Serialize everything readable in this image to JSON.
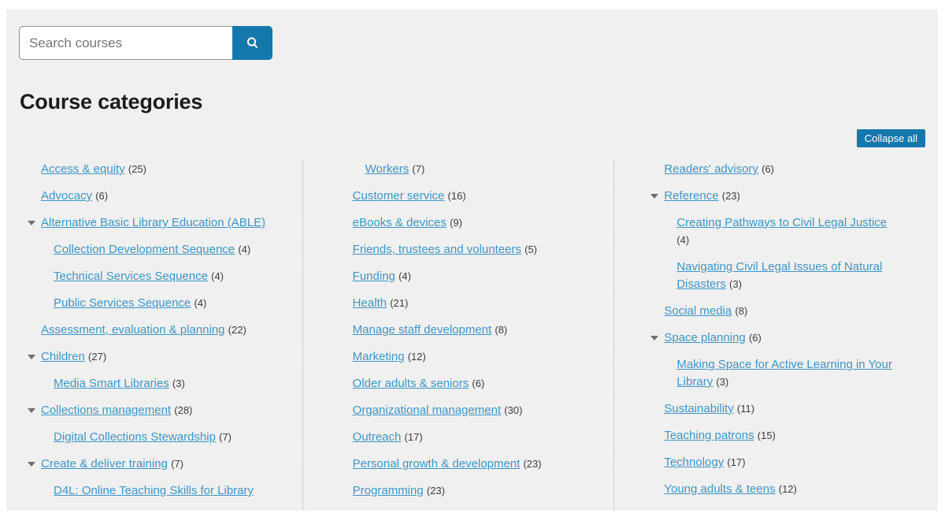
{
  "search": {
    "placeholder": "Search courses"
  },
  "page": {
    "title": "Course categories",
    "collapse_all_label": "Collapse all"
  },
  "colors": {
    "accent_blue": "#1578ad",
    "link_blue": "#3e95c5",
    "panel_background": "#f0f0f0"
  },
  "icons": {
    "search_button": "magnifier-icon",
    "expandable_category": "caret-down-icon"
  },
  "columns": [
    {
      "items": [
        {
          "label": "Access & equity",
          "count": "(25)",
          "caret": false,
          "sub": false
        },
        {
          "label": "Advocacy",
          "count": "(6)",
          "caret": false,
          "sub": false
        },
        {
          "label": "Alternative Basic Library Education (ABLE)",
          "count": "",
          "caret": true,
          "sub": false
        },
        {
          "label": "Collection Development Sequence",
          "count": "(4)",
          "caret": false,
          "sub": true
        },
        {
          "label": "Technical Services Sequence",
          "count": "(4)",
          "caret": false,
          "sub": true
        },
        {
          "label": "Public Services Sequence",
          "count": "(4)",
          "caret": false,
          "sub": true
        },
        {
          "label": "Assessment, evaluation & planning",
          "count": "(22)",
          "caret": false,
          "sub": false
        },
        {
          "label": "Children",
          "count": "(27)",
          "caret": true,
          "sub": false
        },
        {
          "label": "Media Smart Libraries",
          "count": "(3)",
          "caret": false,
          "sub": true
        },
        {
          "label": "Collections management",
          "count": "(28)",
          "caret": true,
          "sub": false
        },
        {
          "label": "Digital Collections Stewardship",
          "count": "(7)",
          "caret": false,
          "sub": true
        },
        {
          "label": "Create & deliver training",
          "count": "(7)",
          "caret": true,
          "sub": false
        },
        {
          "label": "D4L: Online Teaching Skills for Library",
          "count": "",
          "caret": false,
          "sub": true
        }
      ]
    },
    {
      "items": [
        {
          "label": "Workers",
          "count": "(7)",
          "caret": false,
          "sub": true
        },
        {
          "label": "Customer service",
          "count": "(16)",
          "caret": false,
          "sub": false
        },
        {
          "label": "eBooks & devices",
          "count": "(9)",
          "caret": false,
          "sub": false
        },
        {
          "label": "Friends, trustees and volunteers",
          "count": "(5)",
          "caret": false,
          "sub": false
        },
        {
          "label": "Funding",
          "count": "(4)",
          "caret": false,
          "sub": false
        },
        {
          "label": "Health",
          "count": "(21)",
          "caret": false,
          "sub": false
        },
        {
          "label": "Manage staff development",
          "count": "(8)",
          "caret": false,
          "sub": false
        },
        {
          "label": "Marketing",
          "count": "(12)",
          "caret": false,
          "sub": false
        },
        {
          "label": "Older adults & seniors",
          "count": "(6)",
          "caret": false,
          "sub": false
        },
        {
          "label": "Organizational management",
          "count": "(30)",
          "caret": false,
          "sub": false
        },
        {
          "label": "Outreach",
          "count": "(17)",
          "caret": false,
          "sub": false
        },
        {
          "label": "Personal growth & development",
          "count": "(23)",
          "caret": false,
          "sub": false
        },
        {
          "label": "Programming",
          "count": "(23)",
          "caret": false,
          "sub": false
        }
      ]
    },
    {
      "items": [
        {
          "label": "Readers' advisory",
          "count": "(6)",
          "caret": false,
          "sub": false
        },
        {
          "label": "Reference",
          "count": "(23)",
          "caret": true,
          "sub": false
        },
        {
          "label": "Creating Pathways to Civil Legal Justice",
          "count": "(4)",
          "caret": false,
          "sub": true
        },
        {
          "label": "Navigating Civil Legal Issues of Natural Disasters",
          "count": "(3)",
          "caret": false,
          "sub": true
        },
        {
          "label": "Social media",
          "count": "(8)",
          "caret": false,
          "sub": false
        },
        {
          "label": "Space planning",
          "count": "(6)",
          "caret": true,
          "sub": false
        },
        {
          "label": "Making Space for Active Learning in Your Library",
          "count": "(3)",
          "caret": false,
          "sub": true
        },
        {
          "label": "Sustainability",
          "count": "(11)",
          "caret": false,
          "sub": false
        },
        {
          "label": "Teaching patrons",
          "count": "(15)",
          "caret": false,
          "sub": false
        },
        {
          "label": "Technology",
          "count": "(17)",
          "caret": false,
          "sub": false
        },
        {
          "label": "Young adults & teens",
          "count": "(12)",
          "caret": false,
          "sub": false
        }
      ]
    }
  ]
}
